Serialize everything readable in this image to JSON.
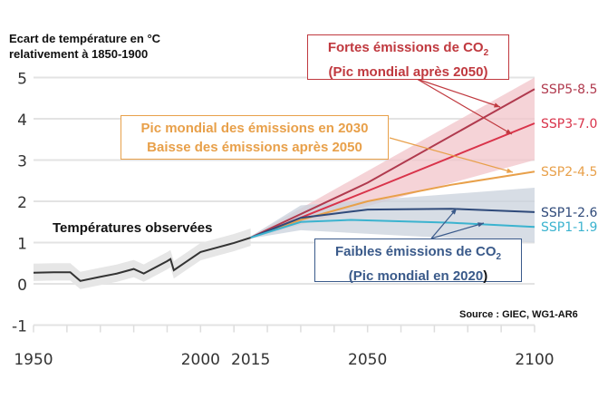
{
  "chart_data": {
    "type": "line",
    "ylabel": "Ecart de température en °C relativement à 1850-1900",
    "xlim": [
      1950,
      2100
    ],
    "ylim": [
      -1,
      5
    ],
    "x_ticks": [
      1950,
      2000,
      2015,
      2050,
      2100
    ],
    "y_ticks": [
      -1,
      0,
      1,
      2,
      3,
      4,
      5
    ],
    "grid": true,
    "observed": {
      "name": "Températures observées",
      "color": "#333333",
      "x": [
        1950,
        1956,
        1961,
        1964,
        1970,
        1975,
        1980,
        1983,
        1990,
        1991,
        1992,
        1996,
        2000,
        2005,
        2010,
        2015
      ],
      "y": [
        0.27,
        0.28,
        0.28,
        0.07,
        0.17,
        0.25,
        0.36,
        0.25,
        0.55,
        0.6,
        0.33,
        0.55,
        0.77,
        0.88,
        0.99,
        1.12
      ]
    },
    "series": [
      {
        "name": "SSP5-8.5",
        "color": "#b03a4e",
        "x": [
          2015,
          2050,
          2100
        ],
        "y": [
          1.12,
          2.45,
          4.72
        ]
      },
      {
        "name": "SSP3-7.0",
        "color": "#d9334a",
        "x": [
          2015,
          2050,
          2100
        ],
        "y": [
          1.12,
          2.25,
          3.89
        ]
      },
      {
        "name": "SSP2-4.5",
        "color": "#e8a04a",
        "x": [
          2015,
          2030,
          2050,
          2075,
          2100
        ],
        "y": [
          1.12,
          1.55,
          2.0,
          2.4,
          2.72
        ]
      },
      {
        "name": "SSP1-2.6",
        "color": "#2f4a7a",
        "x": [
          2015,
          2030,
          2050,
          2075,
          2100
        ],
        "y": [
          1.12,
          1.6,
          1.8,
          1.82,
          1.74
        ]
      },
      {
        "name": "SSP1-1.9",
        "color": "#3bb3cf",
        "x": [
          2015,
          2030,
          2045,
          2075,
          2100
        ],
        "y": [
          1.12,
          1.5,
          1.55,
          1.48,
          1.38
        ]
      }
    ],
    "bands": [
      {
        "name": "high",
        "color": "#f2c4ca",
        "x": [
          2015,
          2100
        ],
        "low": [
          1.1,
          3.0
        ],
        "high": [
          1.15,
          5.0
        ]
      },
      {
        "name": "low",
        "color": "#c9d2dc",
        "x": [
          2015,
          2030,
          2100
        ],
        "low": [
          1.1,
          1.3,
          1.0
        ],
        "high": [
          1.15,
          1.9,
          2.33
        ]
      }
    ],
    "annotations": {
      "high": {
        "line1": "Fortes émissions de CO",
        "sub": "2",
        "line2": "(Pic mondial après 2050)",
        "color": "#c0393f"
      },
      "mid": {
        "line1": "Pic mondial des émissions en 2030",
        "line2": "Baisse des émissions après 2050",
        "color": "#e8a04a"
      },
      "low": {
        "line1": "Faibles émissions de CO",
        "sub": "2",
        "line2": "(Pic mondial en 2020",
        "close": ")",
        "color": "#3a5a8a"
      },
      "observed_label": "Températures observées",
      "source": "Source : GIEC, WG1-AR6"
    }
  }
}
